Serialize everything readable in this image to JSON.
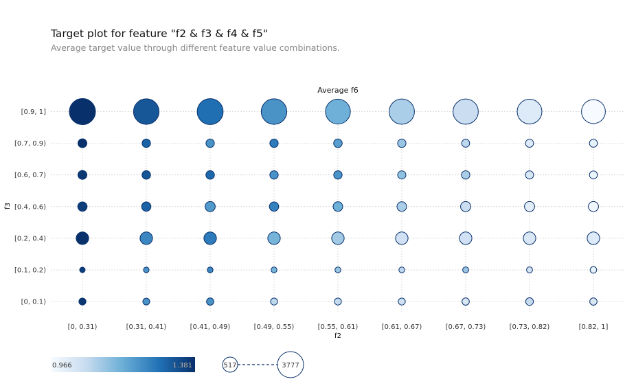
{
  "header": {
    "title": "Target plot for feature \"f2 & f3 & f4 & f5\"",
    "subtitle": "Average target value through different feature value combinations."
  },
  "chart_data": {
    "type": "scatter",
    "subtype": "bubble-grid",
    "title": "Average f6",
    "xlabel": "f2",
    "ylabel": "f3",
    "x_categories": [
      "[0, 0.31)",
      "[0.31, 0.41)",
      "[0.41, 0.49)",
      "[0.49, 0.55)",
      "[0.55, 0.61)",
      "[0.61, 0.67)",
      "[0.67, 0.73)",
      "[0.73, 0.82)",
      "[0.82, 1]"
    ],
    "y_categories": [
      "[0.9, 1]",
      "[0.7, 0.9)",
      "[0.6, 0.7)",
      "[0.4, 0.6)",
      "[0.2, 0.4)",
      "[0.1, 0.2)",
      "[0, 0.1)"
    ],
    "values": [
      [
        1.381,
        1.32,
        1.28,
        1.22,
        1.17,
        1.1,
        1.06,
        1.02,
        0.966
      ],
      [
        1.381,
        1.3,
        1.22,
        1.26,
        1.2,
        1.12,
        1.08,
        1.02,
        1.0
      ],
      [
        1.37,
        1.32,
        1.29,
        1.22,
        1.22,
        1.13,
        1.1,
        1.03,
        0.99
      ],
      [
        1.36,
        1.3,
        1.21,
        1.25,
        1.17,
        1.1,
        1.06,
        1.01,
        0.98
      ],
      [
        1.381,
        1.24,
        1.26,
        1.16,
        1.11,
        1.05,
        1.05,
        1.03,
        1.02
      ],
      [
        1.36,
        1.22,
        1.24,
        1.16,
        1.12,
        1.08,
        1.12,
        1.04,
        1.0
      ],
      [
        1.37,
        1.22,
        1.22,
        1.08,
        1.07,
        1.05,
        1.03,
        1.07,
        1.03
      ]
    ],
    "counts": [
      [
        3777,
        3700,
        3750,
        3700,
        3580,
        3650,
        3650,
        3550,
        3420
      ],
      [
        1050,
        970,
        970,
        970,
        1000,
        970,
        910,
        930,
        900
      ],
      [
        1070,
        1000,
        1000,
        970,
        970,
        950,
        970,
        930,
        910
      ],
      [
        1120,
        1120,
        1250,
        1120,
        1170,
        1170,
        1250,
        1250,
        1250
      ],
      [
        1620,
        1620,
        1620,
        1620,
        1620,
        1620,
        1620,
        1620,
        1620
      ],
      [
        517,
        530,
        560,
        580,
        590,
        570,
        610,
        610,
        690
      ],
      [
        750,
        730,
        790,
        760,
        760,
        760,
        800,
        860,
        800
      ]
    ],
    "colorbar": {
      "min": 0.966,
      "max": 1.381,
      "min_label": "0.966",
      "max_label": "1.381"
    },
    "size_legend": {
      "min": 517,
      "max": 3777,
      "min_label": "517",
      "max_label": "3777"
    },
    "colors": {
      "low": "#f7fbff",
      "high": "#08306b",
      "edge": "#08306b",
      "grid": "#cccccc"
    },
    "grid": true
  }
}
